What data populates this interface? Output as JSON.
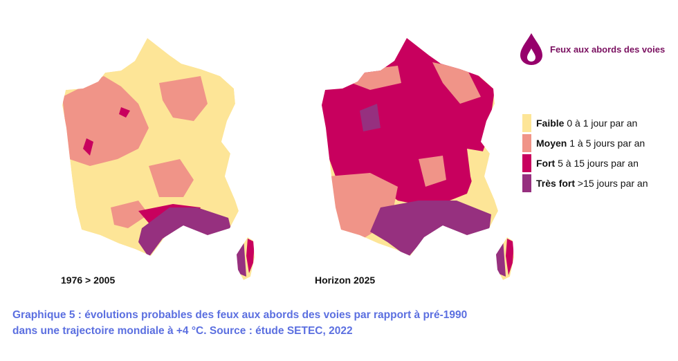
{
  "legend": {
    "title": "Feux aux abords des voies",
    "items": [
      {
        "label": "Faible",
        "description": "0 à 1 jour par an",
        "color": "#fde597"
      },
      {
        "label": "Moyen",
        "description": "1 à 5 jours par an",
        "color": "#f09488"
      },
      {
        "label": "Fort",
        "description": "5 à 15 jours par an",
        "color": "#c8005e"
      },
      {
        "label": "Très fort",
        "description": ">15 jours par an",
        "color": "#96307f"
      }
    ]
  },
  "maps": [
    {
      "label": "1976 > 2005"
    },
    {
      "label": "Horizon 2025"
    }
  ],
  "caption": {
    "lines": [
      "Graphique 5 : évolutions probables des feux aux abords des voies par rapport à pré-1990",
      "dans une trajectoire mondiale à +4 °C. Source : étude SETEC, 2022"
    ]
  }
}
